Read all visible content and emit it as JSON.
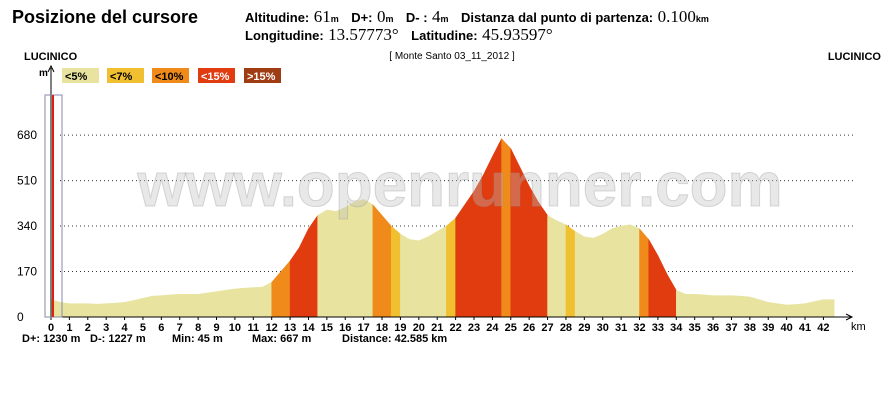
{
  "header": {
    "title": "Posizione del cursore",
    "altitude": {
      "label": "Altitudine:",
      "value": "61",
      "unit": "m"
    },
    "d_plus": {
      "label": "D+:",
      "value": "0",
      "unit": "m"
    },
    "d_minus": {
      "label": "D- :",
      "value": "4",
      "unit": "m"
    },
    "distance": {
      "label": "Distanza dal punto di partenza:",
      "value": "0.100",
      "unit": "km"
    },
    "longitude": {
      "label": "Longitudine:",
      "value": "13.57773°"
    },
    "latitude": {
      "label": "Latitudine:",
      "value": "45.93597°"
    }
  },
  "chart_data": {
    "type": "area",
    "start_label": "LUCINICO",
    "end_label": "LUCINICO",
    "subtitle": "[ Monte Santo 03_11_2012 ]",
    "watermark": "www.openrunner.com",
    "ylabel": "m",
    "xlabel": "km",
    "grade_classes": [
      {
        "value": 5,
        "label": "<5%",
        "color": "#e8e4a0"
      },
      {
        "value": 7,
        "label": "<7%",
        "color": "#f0c030"
      },
      {
        "value": 10,
        "label": "<10%",
        "color": "#f08a1a"
      },
      {
        "value": 15,
        "label": "<15%",
        "color": "#e03c10"
      },
      {
        "value": 15,
        "label": ">15%",
        "color": "#a03c14"
      }
    ],
    "x": [
      0,
      0.5,
      1,
      1.5,
      2,
      2.5,
      3,
      3.5,
      4,
      4.5,
      5,
      5.5,
      6,
      6.5,
      7,
      7.5,
      8,
      8.5,
      9,
      9.5,
      10,
      10.5,
      11,
      11.5,
      12,
      12.5,
      13,
      13.5,
      14,
      14.5,
      15,
      15.5,
      16,
      16.5,
      17,
      17.5,
      18,
      18.5,
      19,
      19.5,
      20,
      20.5,
      21,
      21.5,
      22,
      22.5,
      23,
      23.5,
      24,
      24.5,
      25,
      25.5,
      26,
      26.5,
      27,
      27.5,
      28,
      28.5,
      29,
      29.5,
      30,
      30.5,
      31,
      31.5,
      32,
      32.5,
      33,
      33.5,
      34,
      34.5,
      35,
      35.5,
      36,
      36.5,
      37,
      37.5,
      38,
      38.5,
      39,
      39.5,
      40,
      40.5,
      41,
      41.5,
      42,
      42.585
    ],
    "values": [
      65,
      55,
      50,
      50,
      50,
      48,
      50,
      52,
      55,
      62,
      70,
      78,
      80,
      83,
      85,
      85,
      85,
      90,
      95,
      100,
      105,
      108,
      110,
      112,
      130,
      170,
      210,
      260,
      330,
      380,
      400,
      395,
      410,
      430,
      440,
      420,
      380,
      340,
      310,
      290,
      285,
      300,
      320,
      340,
      370,
      420,
      470,
      530,
      600,
      667,
      630,
      560,
      490,
      430,
      380,
      360,
      345,
      320,
      300,
      295,
      310,
      330,
      340,
      345,
      330,
      290,
      230,
      160,
      100,
      85,
      85,
      83,
      80,
      80,
      80,
      78,
      75,
      65,
      55,
      50,
      45,
      47,
      50,
      58,
      65,
      65
    ],
    "xlim": [
      0,
      43.5
    ],
    "xticks": [
      0,
      1,
      2,
      3,
      4,
      5,
      6,
      7,
      8,
      9,
      10,
      11,
      12,
      13,
      14,
      15,
      16,
      17,
      18,
      19,
      20,
      21,
      22,
      23,
      24,
      25,
      26,
      27,
      28,
      29,
      30,
      31,
      32,
      33,
      34,
      35,
      36,
      37,
      38,
      39,
      40,
      41,
      42
    ],
    "ylim": [
      0,
      830
    ],
    "yticks": [
      0,
      170,
      340,
      510,
      680
    ],
    "grid": true,
    "summary": {
      "d_plus": "D+: 1230 m",
      "d_minus": "D-: 1227 m",
      "min": "Min: 45 m",
      "max": "Max: 667 m",
      "distance": "Distance: 42.585 km"
    }
  }
}
